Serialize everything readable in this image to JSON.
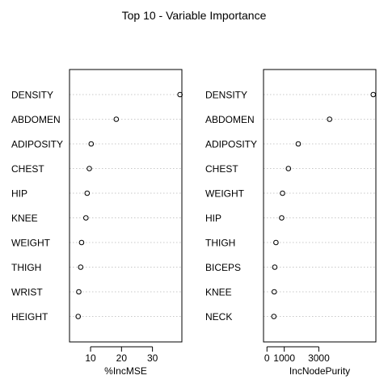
{
  "chart_data": {
    "title": "Top 10 - Variable Importance",
    "panels": [
      {
        "type": "scatter",
        "xlabel": "%IncMSE",
        "xlim": [
          3.2,
          39.5
        ],
        "x_ticks": [
          10,
          20,
          30
        ],
        "variables": [
          "DENSITY",
          "ABDOMEN",
          "ADIPOSITY",
          "CHEST",
          "HIP",
          "KNEE",
          "WEIGHT",
          "THIGH",
          "WRIST",
          "HEIGHT"
        ],
        "values": [
          38.9,
          18.3,
          10.2,
          9.6,
          8.9,
          8.5,
          7.1,
          6.8,
          6.2,
          6.0
        ]
      },
      {
        "type": "scatter",
        "xlabel": "IncNodePurity",
        "xlim": [
          -200,
          6300
        ],
        "x_ticks": [
          0,
          1000,
          3000
        ],
        "x_tick_labels": [
          "0",
          "1000",
          "3000"
        ],
        "variables": [
          "DENSITY",
          "ABDOMEN",
          "ADIPOSITY",
          "CHEST",
          "WEIGHT",
          "HIP",
          "THIGH",
          "BICEPS",
          "KNEE",
          "NECK"
        ],
        "values": [
          6150,
          3620,
          1810,
          1240,
          900,
          850,
          520,
          450,
          420,
          400
        ]
      }
    ]
  }
}
